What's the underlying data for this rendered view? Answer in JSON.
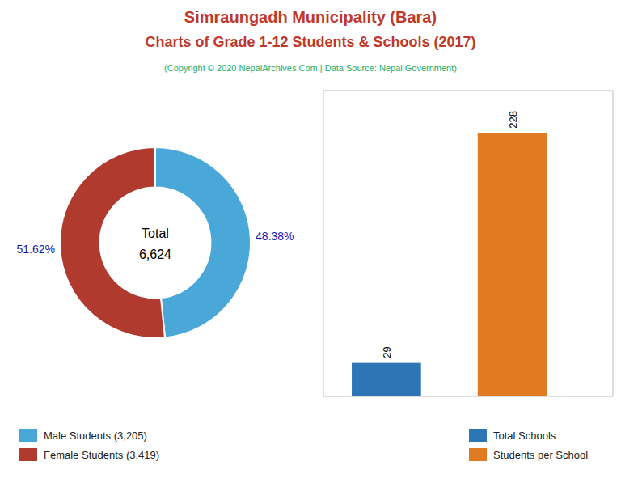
{
  "title": [
    "Simraungadh Municipality (Bara)",
    "Charts of Grade 1-12 Students & Schools (2017)"
  ],
  "subtitle": "(Copyright © 2020 NepalArchives.Com | Data Source: Nepal Government)",
  "chart_data": [
    {
      "type": "pie",
      "categories": [
        "Male Students (3,205)",
        "Female Students (3,419)"
      ],
      "values": [
        48.38,
        51.62
      ],
      "value_labels": [
        "48.38%",
        "51.62%"
      ],
      "colors": [
        "#4aa8d8",
        "#b03a2e"
      ],
      "annotations": [
        "Total",
        "6,624"
      ],
      "data_labels": true,
      "legend": "bottom"
    },
    {
      "type": "bar",
      "categories": [
        "Total Schools",
        "Students per School"
      ],
      "values": [
        29,
        228
      ],
      "colors": [
        "#2e75b6",
        "#e07b24"
      ],
      "ylim": [
        0,
        265
      ],
      "tick_labels": false,
      "data_labels": true,
      "legend": "bottom"
    }
  ]
}
